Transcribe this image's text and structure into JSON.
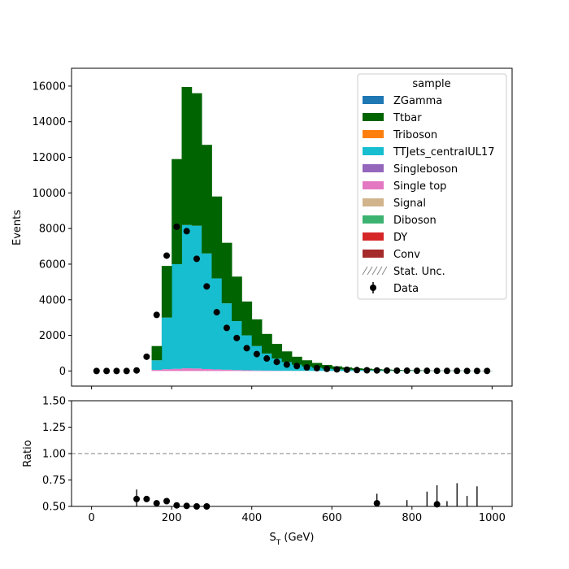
{
  "chart_data": [
    {
      "type": "stacked-bar-histogram",
      "xlim": [
        -50,
        1050
      ],
      "ylim": [
        -850,
        17000
      ],
      "ylabel": "Events",
      "x_ticks": [
        0,
        200,
        400,
        600,
        800,
        1000
      ],
      "y_ticks": [
        0,
        2000,
        4000,
        6000,
        8000,
        10000,
        12000,
        14000,
        16000
      ],
      "bin_edges": [
        0,
        25,
        50,
        75,
        100,
        125,
        150,
        175,
        200,
        225,
        250,
        275,
        300,
        325,
        350,
        375,
        400,
        425,
        450,
        475,
        500,
        525,
        550,
        575,
        600,
        625,
        650,
        675,
        700,
        725,
        750,
        775,
        800,
        825,
        850,
        875,
        900,
        925,
        950,
        975,
        1000
      ],
      "legend": {
        "title": "sample",
        "position": "top-right",
        "entries": [
          {
            "label": "ZGamma",
            "color": "#1f77b4",
            "kind": "patch"
          },
          {
            "label": "Ttbar",
            "color": "#006400",
            "kind": "patch"
          },
          {
            "label": "Triboson",
            "color": "#ff7f0e",
            "kind": "patch"
          },
          {
            "label": "TTJets_centralUL17",
            "color": "#17becf",
            "kind": "patch"
          },
          {
            "label": "Singleboson",
            "color": "#9467bd",
            "kind": "patch"
          },
          {
            "label": "Single top",
            "color": "#e377c2",
            "kind": "patch"
          },
          {
            "label": "Signal",
            "color": "#d2b48c",
            "kind": "patch"
          },
          {
            "label": "Diboson",
            "color": "#3cb371",
            "kind": "patch"
          },
          {
            "label": "DY",
            "color": "#d62728",
            "kind": "patch"
          },
          {
            "label": "Conv",
            "color": "#a52a2a",
            "kind": "patch"
          },
          {
            "label": "Stat. Unc.",
            "color": "#888888",
            "kind": "hatch"
          },
          {
            "label": "Data",
            "color": "#000000",
            "kind": "errorbar"
          }
        ]
      },
      "series": [
        {
          "name": "Single top",
          "color": "#e377c2",
          "values": [
            0,
            0,
            0,
            0,
            0,
            0,
            60,
            100,
            120,
            150,
            140,
            110,
            90,
            70,
            50,
            40,
            30,
            20,
            15,
            10,
            8,
            6,
            5,
            4,
            3,
            2,
            2,
            1,
            1,
            1,
            1,
            0,
            0,
            0,
            0,
            0,
            0,
            0,
            0,
            0
          ]
        },
        {
          "name": "TTJets_centralUL17",
          "color": "#17becf",
          "values": [
            0,
            0,
            0,
            0,
            0,
            0,
            540,
            2900,
            5880,
            8050,
            8020,
            6490,
            5110,
            3730,
            2750,
            1960,
            1370,
            960,
            685,
            490,
            342,
            244,
            175,
            126,
            97,
            78,
            58,
            49,
            39,
            29,
            19,
            20,
            20,
            10,
            10,
            10,
            10,
            10,
            5,
            5
          ]
        },
        {
          "name": "Ttbar",
          "color": "#006400",
          "values": [
            0,
            0,
            0,
            0,
            0,
            0,
            800,
            2900,
            5900,
            7750,
            7440,
            6100,
            4600,
            3400,
            2500,
            1900,
            1500,
            1100,
            820,
            600,
            450,
            350,
            270,
            210,
            160,
            120,
            90,
            80,
            60,
            50,
            40,
            30,
            25,
            20,
            15,
            15,
            15,
            10,
            10,
            10
          ]
        }
      ],
      "data_points": {
        "name": "Data",
        "x": [
          12.5,
          37.5,
          62.5,
          87.5,
          112.5,
          137.5,
          162.5,
          187.5,
          212.5,
          237.5,
          262.5,
          287.5,
          312.5,
          337.5,
          362.5,
          387.5,
          412.5,
          437.5,
          462.5,
          487.5,
          512.5,
          537.5,
          562.5,
          587.5,
          612.5,
          637.5,
          662.5,
          687.5,
          712.5,
          737.5,
          762.5,
          787.5,
          812.5,
          837.5,
          862.5,
          887.5,
          912.5,
          937.5,
          962.5,
          987.5
        ],
        "y": [
          0,
          0,
          0,
          0,
          30,
          800,
          3150,
          6480,
          8100,
          7850,
          6300,
          4750,
          3300,
          2420,
          1850,
          1280,
          950,
          700,
          510,
          360,
          280,
          200,
          160,
          120,
          90,
          70,
          50,
          40,
          30,
          25,
          20,
          15,
          12,
          10,
          8,
          5,
          5,
          3,
          2,
          2
        ]
      }
    },
    {
      "type": "ratio",
      "xlim": [
        -50,
        1050
      ],
      "ylim": [
        0.5,
        1.5
      ],
      "xlabel_main": "S",
      "xlabel_sub": "T",
      "xlabel_unit": " (GeV)",
      "ylabel": "Ratio",
      "x_ticks": [
        0,
        200,
        400,
        600,
        800,
        1000
      ],
      "y_ticks": [
        "0.50",
        "0.75",
        "1.00",
        "1.25",
        "1.50"
      ],
      "reference_line": 1.0,
      "points": [
        {
          "x": 112.5,
          "y": 0.57,
          "err": 0.09
        },
        {
          "x": 137.5,
          "y": 0.57,
          "err": 0.02
        },
        {
          "x": 162.5,
          "y": 0.53,
          "err": 0.01
        },
        {
          "x": 187.5,
          "y": 0.55,
          "err": 0.01
        },
        {
          "x": 212.5,
          "y": 0.51,
          "err": 0.01
        },
        {
          "x": 237.5,
          "y": 0.505,
          "err": 0.01
        },
        {
          "x": 262.5,
          "y": 0.5,
          "err": 0.01
        },
        {
          "x": 287.5,
          "y": 0.5,
          "err": 0.01
        },
        {
          "x": 712.5,
          "y": 0.53,
          "err": 0.09
        },
        {
          "x": 862.5,
          "y": 0.52,
          "err": 0.18
        }
      ],
      "error_only": [
        {
          "x": 787.5,
          "y": 0.5,
          "err": 0.06
        },
        {
          "x": 837.5,
          "y": 0.5,
          "err": 0.14
        },
        {
          "x": 887.5,
          "y": 0.5,
          "err": 0.05
        },
        {
          "x": 912.5,
          "y": 0.5,
          "err": 0.22
        },
        {
          "x": 937.5,
          "y": 0.5,
          "err": 0.1
        },
        {
          "x": 962.5,
          "y": 0.5,
          "err": 0.19
        }
      ]
    }
  ]
}
